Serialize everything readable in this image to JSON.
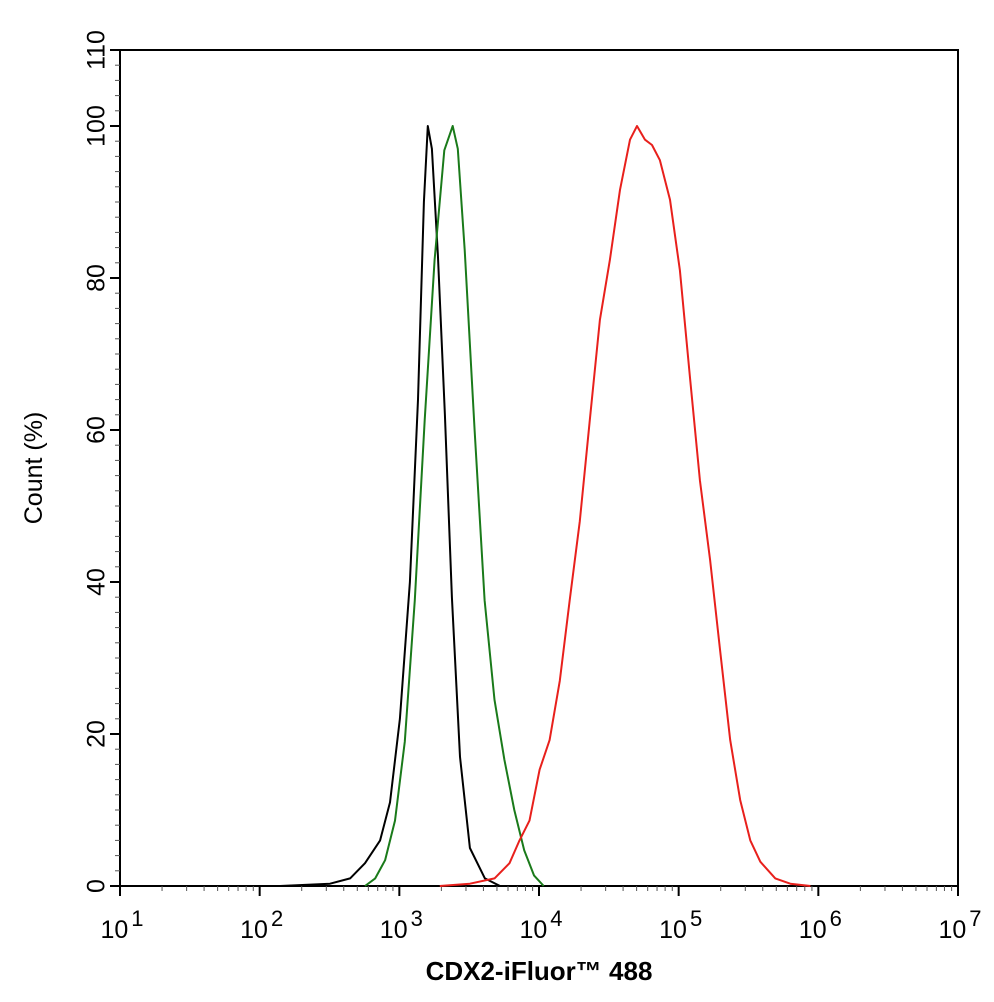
{
  "chart_data": {
    "type": "line",
    "xlabel": "CDX2-iFluor™ 488",
    "ylabel": "Count  (%)",
    "xscale": "log",
    "xlim": [
      10,
      10000000
    ],
    "xticks": [
      {
        "value": 10,
        "label": "10",
        "superscript": "1"
      },
      {
        "value": 100,
        "label": "10",
        "superscript": "2"
      },
      {
        "value": 1000,
        "label": "10",
        "superscript": "3"
      },
      {
        "value": 10000,
        "label": "10",
        "superscript": "4"
      },
      {
        "value": 100000,
        "label": "10",
        "superscript": "5"
      },
      {
        "value": 1000000,
        "label": "10",
        "superscript": "6"
      },
      {
        "value": 10000000,
        "label": "10",
        "superscript": "7"
      }
    ],
    "ylim": [
      0,
      110
    ],
    "yticks": [
      0,
      20,
      40,
      60,
      80,
      100,
      110
    ],
    "series": [
      {
        "color": "#000000",
        "x": [
          140,
          319,
          444,
          568,
          728,
          857,
          1010,
          1190,
          1360,
          1500,
          1600,
          1710,
          1890,
          2120,
          2380,
          2720,
          3200,
          4100,
          5260
        ],
        "values": [
          0,
          0.3,
          1,
          3,
          6,
          11,
          22,
          40,
          64,
          90,
          100,
          97,
          83,
          62,
          38,
          17,
          5,
          1,
          0
        ]
      },
      {
        "color": "#1a7a1a",
        "x": [
          568,
          672,
          791,
          931,
          1095,
          1290,
          1520,
          1790,
          2100,
          2410,
          2620,
          2940,
          3460,
          4080,
          4800,
          5650,
          6650,
          7830,
          9210,
          10800
        ],
        "values": [
          0,
          1,
          3.4,
          8.6,
          19,
          37.6,
          61.3,
          82.4,
          96.8,
          100,
          97,
          83.7,
          60,
          37.6,
          24.5,
          16.6,
          10,
          4.7,
          1.4,
          0
        ]
      },
      {
        "color": "#e8201c",
        "x": [
          1950,
          3200,
          4800,
          6150,
          7250,
          8550,
          10100,
          11900,
          14100,
          16600,
          19600,
          23100,
          27300,
          32200,
          38000,
          44800,
          50300,
          57400,
          64400,
          73400,
          86700,
          102000,
          121000,
          142000,
          168000,
          198000,
          234000,
          276000,
          326000,
          384000,
          492000,
          630000,
          878000
        ],
        "values": [
          0,
          0.3,
          1,
          3,
          6,
          8.6,
          15.3,
          19.2,
          27,
          37.6,
          48,
          61.3,
          74.5,
          82.4,
          91.6,
          98.2,
          100,
          98.2,
          97.5,
          95.5,
          90.3,
          81,
          66.6,
          53.4,
          42.9,
          31,
          19.2,
          11.3,
          6,
          3.2,
          1,
          0.3,
          0
        ]
      }
    ]
  }
}
